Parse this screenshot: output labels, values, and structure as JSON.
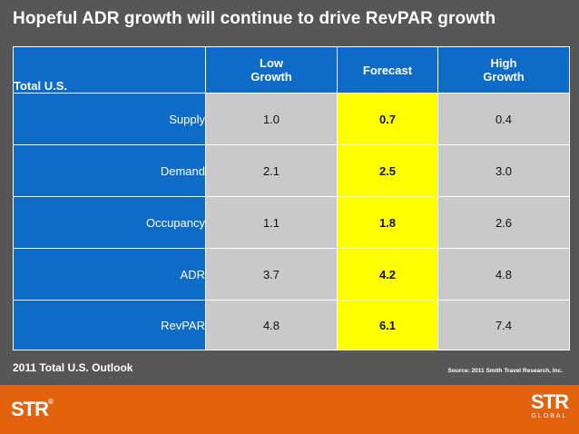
{
  "title": "Hopeful ADR growth will continue to drive RevPAR growth",
  "table": {
    "header": {
      "total_us": "Total U.S.",
      "low_growth_line1": "Low",
      "low_growth_line2": "Growth",
      "forecast": "Forecast",
      "high_growth_line1": "High",
      "high_growth_line2": "Growth"
    },
    "rows": [
      {
        "label": "Supply",
        "low": "1.0",
        "forecast": "0.7",
        "high": "0.4"
      },
      {
        "label": "Demand",
        "low": "2.1",
        "forecast": "2.5",
        "high": "3.0"
      },
      {
        "label": "Occupancy",
        "low": "1.1",
        "forecast": "1.8",
        "high": "2.6"
      },
      {
        "label": "ADR",
        "low": "3.7",
        "forecast": "4.2",
        "high": "4.8"
      },
      {
        "label": "RevPAR",
        "low": "4.8",
        "forecast": "6.1",
        "high": "7.4"
      }
    ]
  },
  "outlook_label": "2011 Total U.S. Outlook",
  "source": "Source: 2011 Smith Travel Research, Inc.",
  "footer": {
    "logo_left": "STR",
    "logo_right": "STR",
    "logo_right_sub": "GLOBAL"
  },
  "colors": {
    "background": "#565656",
    "table_blue": "#0f6bc8",
    "value_gray": "#c9c9c9",
    "forecast_yellow": "#ffff00",
    "footer_orange": "#e2620e"
  }
}
